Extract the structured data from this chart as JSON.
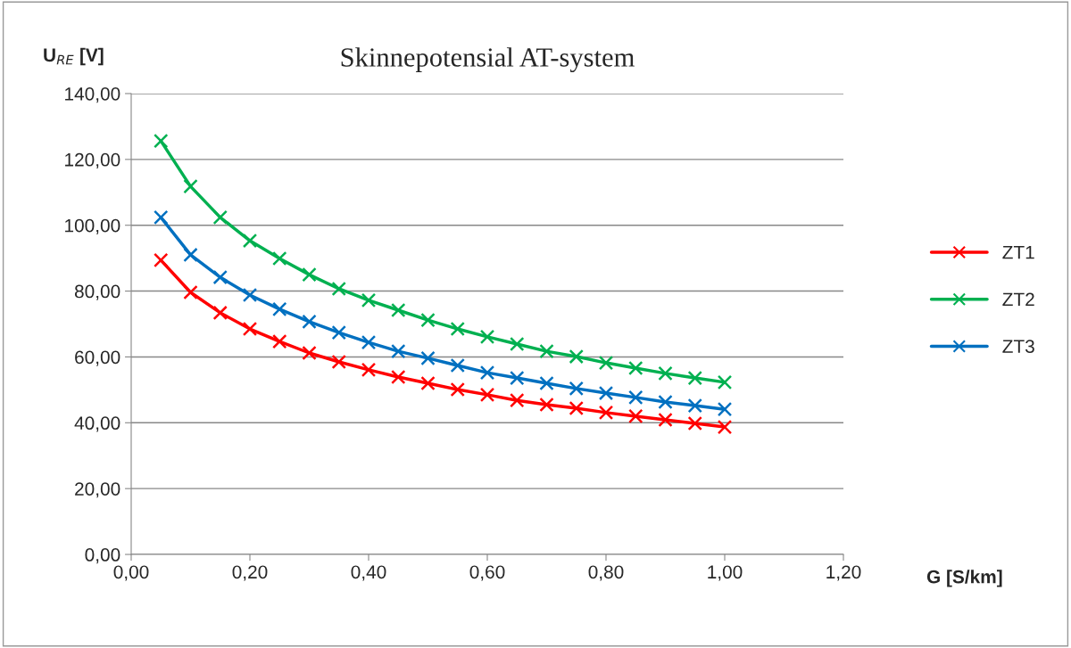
{
  "chart_data": {
    "type": "line",
    "title": "Skinnepotensial AT-system",
    "xlabel": "G [S/km]",
    "ylabel": "U$_{RE}$ [V]",
    "x": [
      0.05,
      0.1,
      0.15,
      0.2,
      0.25,
      0.3,
      0.35,
      0.4,
      0.45,
      0.5,
      0.55,
      0.6,
      0.65,
      0.7,
      0.75,
      0.8,
      0.85,
      0.9,
      0.95,
      1.0
    ],
    "series": [
      {
        "name": "ZT1",
        "color": "#ff0000",
        "values": [
          89.4,
          79.6,
          73.4,
          68.5,
          64.7,
          61.2,
          58.5,
          56.1,
          53.9,
          52.0,
          50.1,
          48.5,
          46.8,
          45.5,
          44.4,
          43.1,
          42.0,
          40.9,
          39.8,
          38.7
        ]
      },
      {
        "name": "ZT2",
        "color": "#00b050",
        "values": [
          125.6,
          111.8,
          102.4,
          95.3,
          89.9,
          85.0,
          80.7,
          77.2,
          74.2,
          71.2,
          68.5,
          66.1,
          63.9,
          61.7,
          60.1,
          58.2,
          56.6,
          55.0,
          53.6,
          52.3
        ]
      },
      {
        "name": "ZT3",
        "color": "#0070c0",
        "values": [
          102.4,
          91.0,
          84.2,
          78.8,
          74.5,
          70.7,
          67.4,
          64.4,
          61.7,
          59.6,
          57.4,
          55.2,
          53.6,
          52.0,
          50.4,
          49.0,
          47.7,
          46.3,
          45.2,
          44.1
        ]
      }
    ],
    "xlim": [
      0,
      1.2
    ],
    "xticks": [
      {
        "value": 0,
        "label": "0,00"
      },
      {
        "value": 0.2,
        "label": "0,20"
      },
      {
        "value": 0.4,
        "label": "0,40"
      },
      {
        "value": 0.6,
        "label": "0,60"
      },
      {
        "value": 0.8,
        "label": "0,80"
      },
      {
        "value": 1.0,
        "label": "1,00"
      },
      {
        "value": 1.2,
        "label": "1,20"
      }
    ],
    "ylim": [
      0,
      140
    ],
    "yticks": [
      {
        "value": 0,
        "label": "0,00"
      },
      {
        "value": 20,
        "label": "20,00"
      },
      {
        "value": 40,
        "label": "40,00"
      },
      {
        "value": 60,
        "label": "60,00"
      },
      {
        "value": 80,
        "label": "80,00"
      },
      {
        "value": 100,
        "label": "100,00"
      },
      {
        "value": 120,
        "label": "120,00"
      },
      {
        "value": 140,
        "label": "140,00"
      }
    ],
    "grid": "y",
    "legend": "right",
    "marker": "cross",
    "line_style": "solid"
  }
}
